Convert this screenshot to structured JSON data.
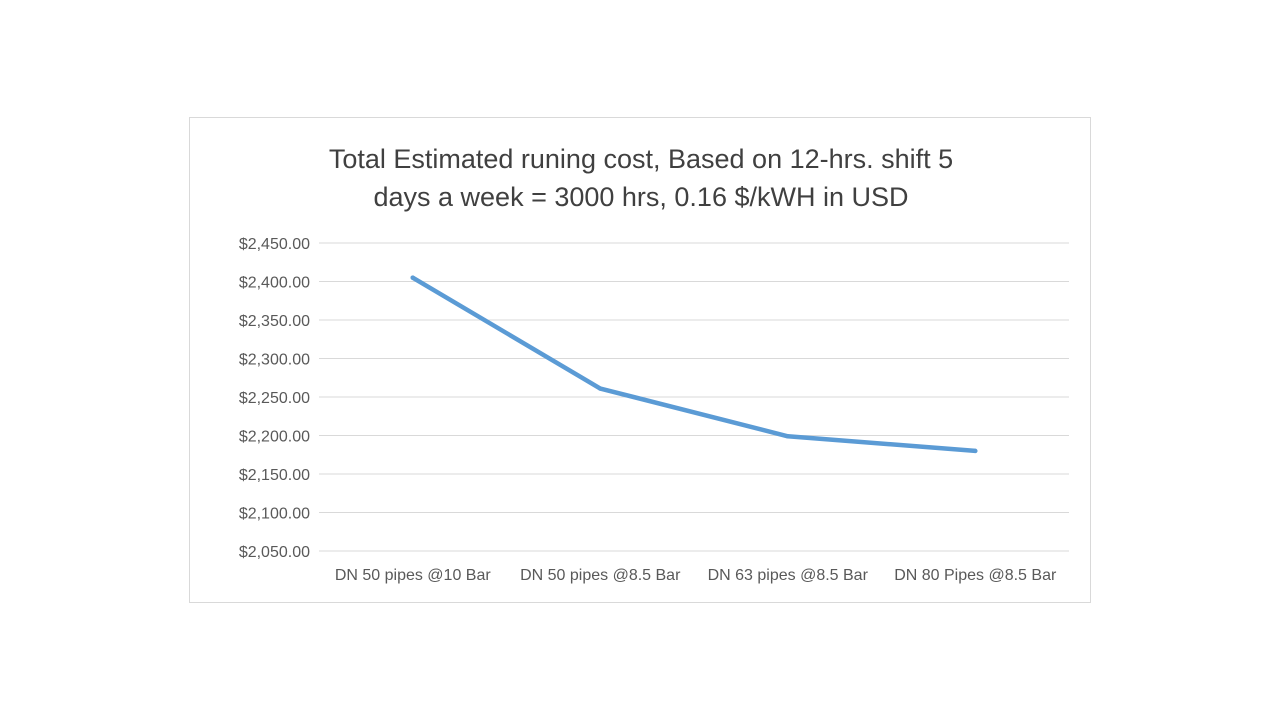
{
  "chart_data": {
    "type": "line",
    "title": "Total Estimated runing cost, Based on 12-hrs. shift 5\ndays a week = 3000 hrs, 0.16 $/kWH in USD",
    "xlabel": "",
    "ylabel": "",
    "categories": [
      "DN 50 pipes @10 Bar",
      "DN 50 pipes @8.5 Bar",
      "DN 63 pipes @8.5 Bar",
      "DN 80 Pipes @8.5 Bar"
    ],
    "series": [
      {
        "values": [
          2405,
          2261,
          2199,
          2180
        ],
        "color": "#5b9bd5"
      }
    ],
    "ylim": [
      2050,
      2450
    ],
    "yticks": [
      2050,
      2100,
      2150,
      2200,
      2250,
      2300,
      2350,
      2400,
      2450
    ],
    "ytick_labels": [
      "$2,050.00",
      "$2,100.00",
      "$2,150.00",
      "$2,200.00",
      "$2,250.00",
      "$2,300.00",
      "$2,350.00",
      "$2,400.00",
      "$2,450.00"
    ],
    "grid": true,
    "legend": "none",
    "gridline_color": "#d9d9d9"
  }
}
